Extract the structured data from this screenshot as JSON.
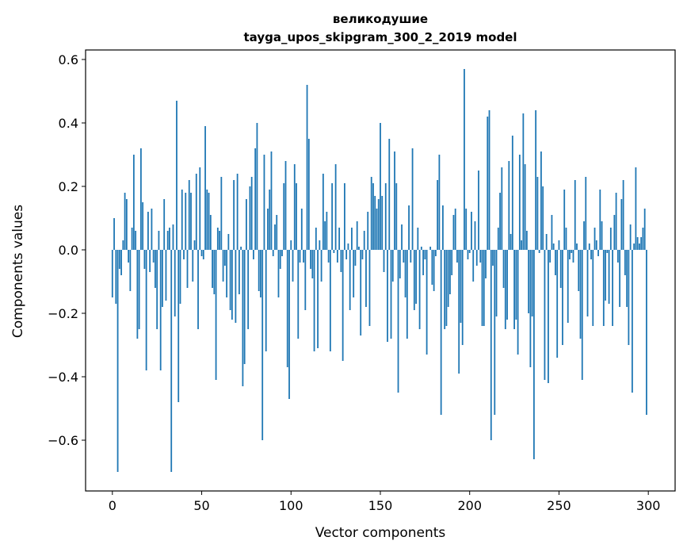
{
  "chart_data": {
    "type": "bar",
    "title_line1": "великодушие",
    "title_line2": "tayga_upos_skipgram_300_2_2019 model",
    "xlabel": "Vector components",
    "ylabel": "Components values",
    "xlim": [
      -15,
      315
    ],
    "ylim": [
      -0.76,
      0.63
    ],
    "xticks": [
      0,
      50,
      100,
      150,
      200,
      250,
      300
    ],
    "xtick_labels": [
      "0",
      "50",
      "100",
      "150",
      "200",
      "250",
      "300"
    ],
    "yticks": [
      0.6,
      0.4,
      0.2,
      0.0,
      -0.2,
      -0.4,
      -0.6
    ],
    "ytick_labels": [
      "0.6",
      "0.4",
      "0.2",
      "0.0",
      "−0.2",
      "−0.4",
      "−0.6"
    ],
    "grid": false,
    "bar_color": "#1f77b4",
    "values": [
      -0.15,
      0.1,
      -0.17,
      -0.7,
      -0.06,
      -0.08,
      0.03,
      0.18,
      0.16,
      -0.04,
      -0.13,
      0.07,
      0.3,
      0.06,
      -0.28,
      -0.25,
      0.32,
      0.15,
      -0.06,
      -0.38,
      0.12,
      -0.07,
      0.13,
      -0.04,
      -0.12,
      -0.25,
      0.06,
      -0.38,
      -0.18,
      0.16,
      -0.16,
      0.06,
      0.07,
      -0.7,
      0.08,
      -0.21,
      0.47,
      -0.48,
      -0.17,
      0.19,
      -0.03,
      0.18,
      -0.12,
      0.22,
      0.18,
      -0.1,
      0.03,
      0.24,
      -0.25,
      0.26,
      -0.02,
      -0.03,
      0.39,
      0.19,
      0.18,
      0.11,
      -0.12,
      -0.14,
      -0.41,
      0.07,
      0.06,
      0.23,
      -0.1,
      -0.05,
      -0.15,
      0.05,
      -0.19,
      -0.22,
      0.22,
      -0.23,
      0.24,
      -0.14,
      0.01,
      -0.43,
      -0.36,
      0.16,
      -0.25,
      0.2,
      0.23,
      -0.03,
      0.32,
      0.4,
      -0.13,
      -0.15,
      -0.6,
      0.3,
      -0.32,
      0.13,
      0.19,
      0.31,
      -0.02,
      0.08,
      0.11,
      -0.15,
      -0.06,
      -0.02,
      0.21,
      0.28,
      -0.37,
      -0.47,
      0.03,
      -0.1,
      0.27,
      0.21,
      -0.28,
      -0.04,
      0.13,
      -0.04,
      -0.19,
      0.52,
      0.35,
      -0.06,
      -0.09,
      -0.32,
      0.07,
      -0.31,
      0.03,
      -0.1,
      0.24,
      0.09,
      0.12,
      -0.04,
      -0.32,
      0.21,
      -0.01,
      0.27,
      -0.04,
      0.07,
      -0.07,
      -0.35,
      0.21,
      -0.03,
      0.02,
      -0.19,
      0.07,
      -0.15,
      -0.05,
      0.09,
      0.01,
      -0.27,
      -0.03,
      0.06,
      -0.18,
      0.12,
      -0.24,
      0.23,
      0.21,
      0.17,
      0.13,
      0.16,
      0.4,
      0.17,
      -0.07,
      0.21,
      -0.29,
      0.35,
      -0.28,
      -0.1,
      0.31,
      0.21,
      -0.45,
      -0.09,
      0.08,
      -0.04,
      -0.15,
      -0.28,
      0.14,
      -0.04,
      0.32,
      -0.19,
      -0.17,
      0.07,
      -0.25,
      0.01,
      -0.08,
      -0.03,
      -0.33,
      0.0,
      0.01,
      -0.11,
      -0.13,
      -0.02,
      0.22,
      0.3,
      -0.52,
      0.14,
      -0.25,
      -0.24,
      -0.18,
      -0.14,
      -0.08,
      0.11,
      0.13,
      -0.04,
      -0.39,
      -0.23,
      -0.3,
      0.57,
      0.13,
      -0.03,
      -0.01,
      0.12,
      -0.1,
      0.09,
      -0.05,
      0.25,
      -0.04,
      -0.24,
      -0.24,
      -0.09,
      0.42,
      0.44,
      -0.6,
      -0.05,
      -0.52,
      -0.21,
      0.07,
      0.18,
      0.26,
      -0.12,
      -0.25,
      -0.22,
      0.28,
      0.05,
      0.36,
      -0.25,
      -0.22,
      -0.33,
      0.3,
      0.03,
      0.43,
      0.27,
      0.06,
      -0.2,
      -0.37,
      -0.21,
      -0.66,
      0.44,
      0.23,
      -0.01,
      0.31,
      0.2,
      -0.41,
      0.05,
      -0.42,
      -0.04,
      0.11,
      0.02,
      -0.08,
      -0.34,
      0.03,
      -0.12,
      -0.3,
      0.19,
      0.07,
      -0.23,
      -0.03,
      -0.01,
      -0.04,
      0.22,
      0.02,
      -0.13,
      -0.28,
      -0.41,
      0.09,
      0.23,
      -0.21,
      0.02,
      -0.03,
      -0.24,
      0.07,
      0.03,
      -0.02,
      0.19,
      0.09,
      -0.24,
      -0.16,
      -0.01,
      -0.17,
      0.07,
      -0.24,
      0.11,
      0.18,
      -0.04,
      -0.18,
      0.16,
      0.22,
      -0.08,
      -0.18,
      -0.3,
      0.08,
      -0.45,
      0.02,
      0.26,
      0.04,
      0.02,
      0.04,
      0.07,
      0.13,
      -0.52
    ]
  }
}
